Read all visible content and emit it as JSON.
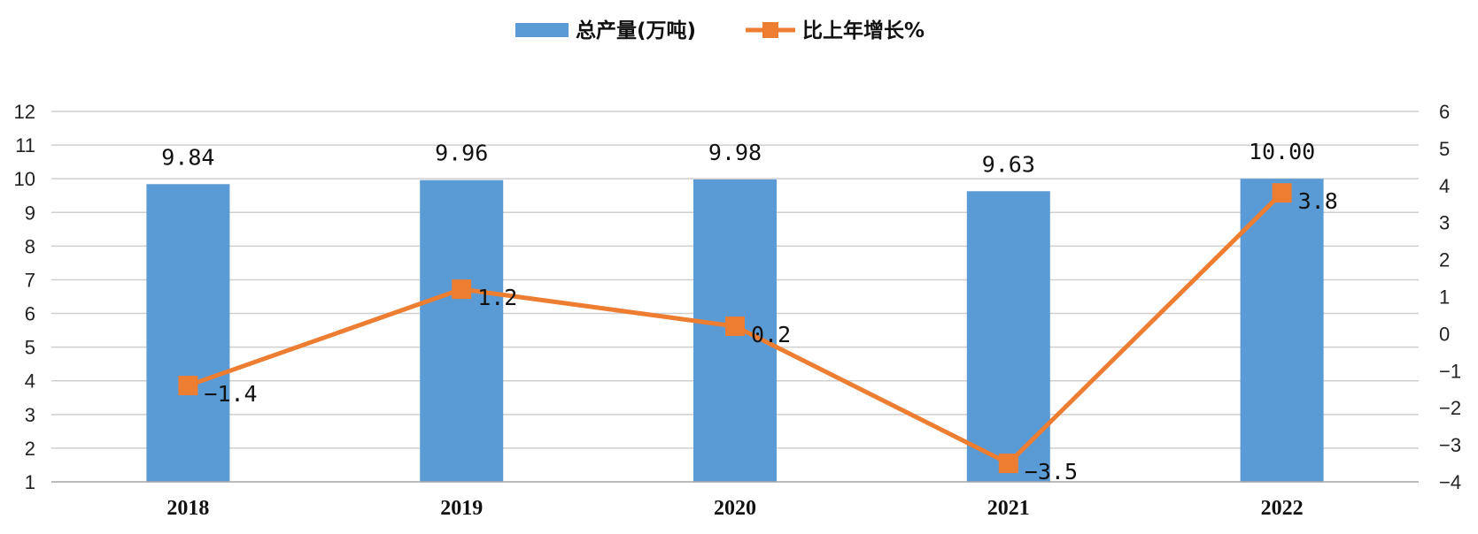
{
  "chart_data": {
    "type": "bar",
    "categories": [
      "2018",
      "2019",
      "2020",
      "2021",
      "2022"
    ],
    "series": [
      {
        "name": "总产量(万吨)",
        "type": "bar",
        "axis": "left",
        "values": [
          9.84,
          9.96,
          9.98,
          9.63,
          10.0
        ],
        "labels": [
          "9.84",
          "9.96",
          "9.98",
          "9.63",
          "10.00"
        ],
        "color": "#5B9BD5"
      },
      {
        "name": "比上年增长%",
        "type": "line",
        "axis": "right",
        "values": [
          -1.4,
          1.2,
          0.2,
          -3.5,
          3.8
        ],
        "labels": [
          "-1.4",
          "1.2",
          "0.2",
          "-3.5",
          "3.8"
        ],
        "color": "#ED7D31"
      }
    ],
    "y_left": {
      "min": 1,
      "max": 12,
      "ticks": [
        "1",
        "2",
        "3",
        "4",
        "5",
        "6",
        "7",
        "8",
        "9",
        "10",
        "11",
        "12"
      ]
    },
    "y_right": {
      "min": -4,
      "max": 6,
      "ticks": [
        "-4",
        "-3",
        "-2",
        "-1",
        "0",
        "1",
        "2",
        "3",
        "4",
        "5",
        "6"
      ]
    },
    "grid": true,
    "legend_position": "top-center"
  }
}
